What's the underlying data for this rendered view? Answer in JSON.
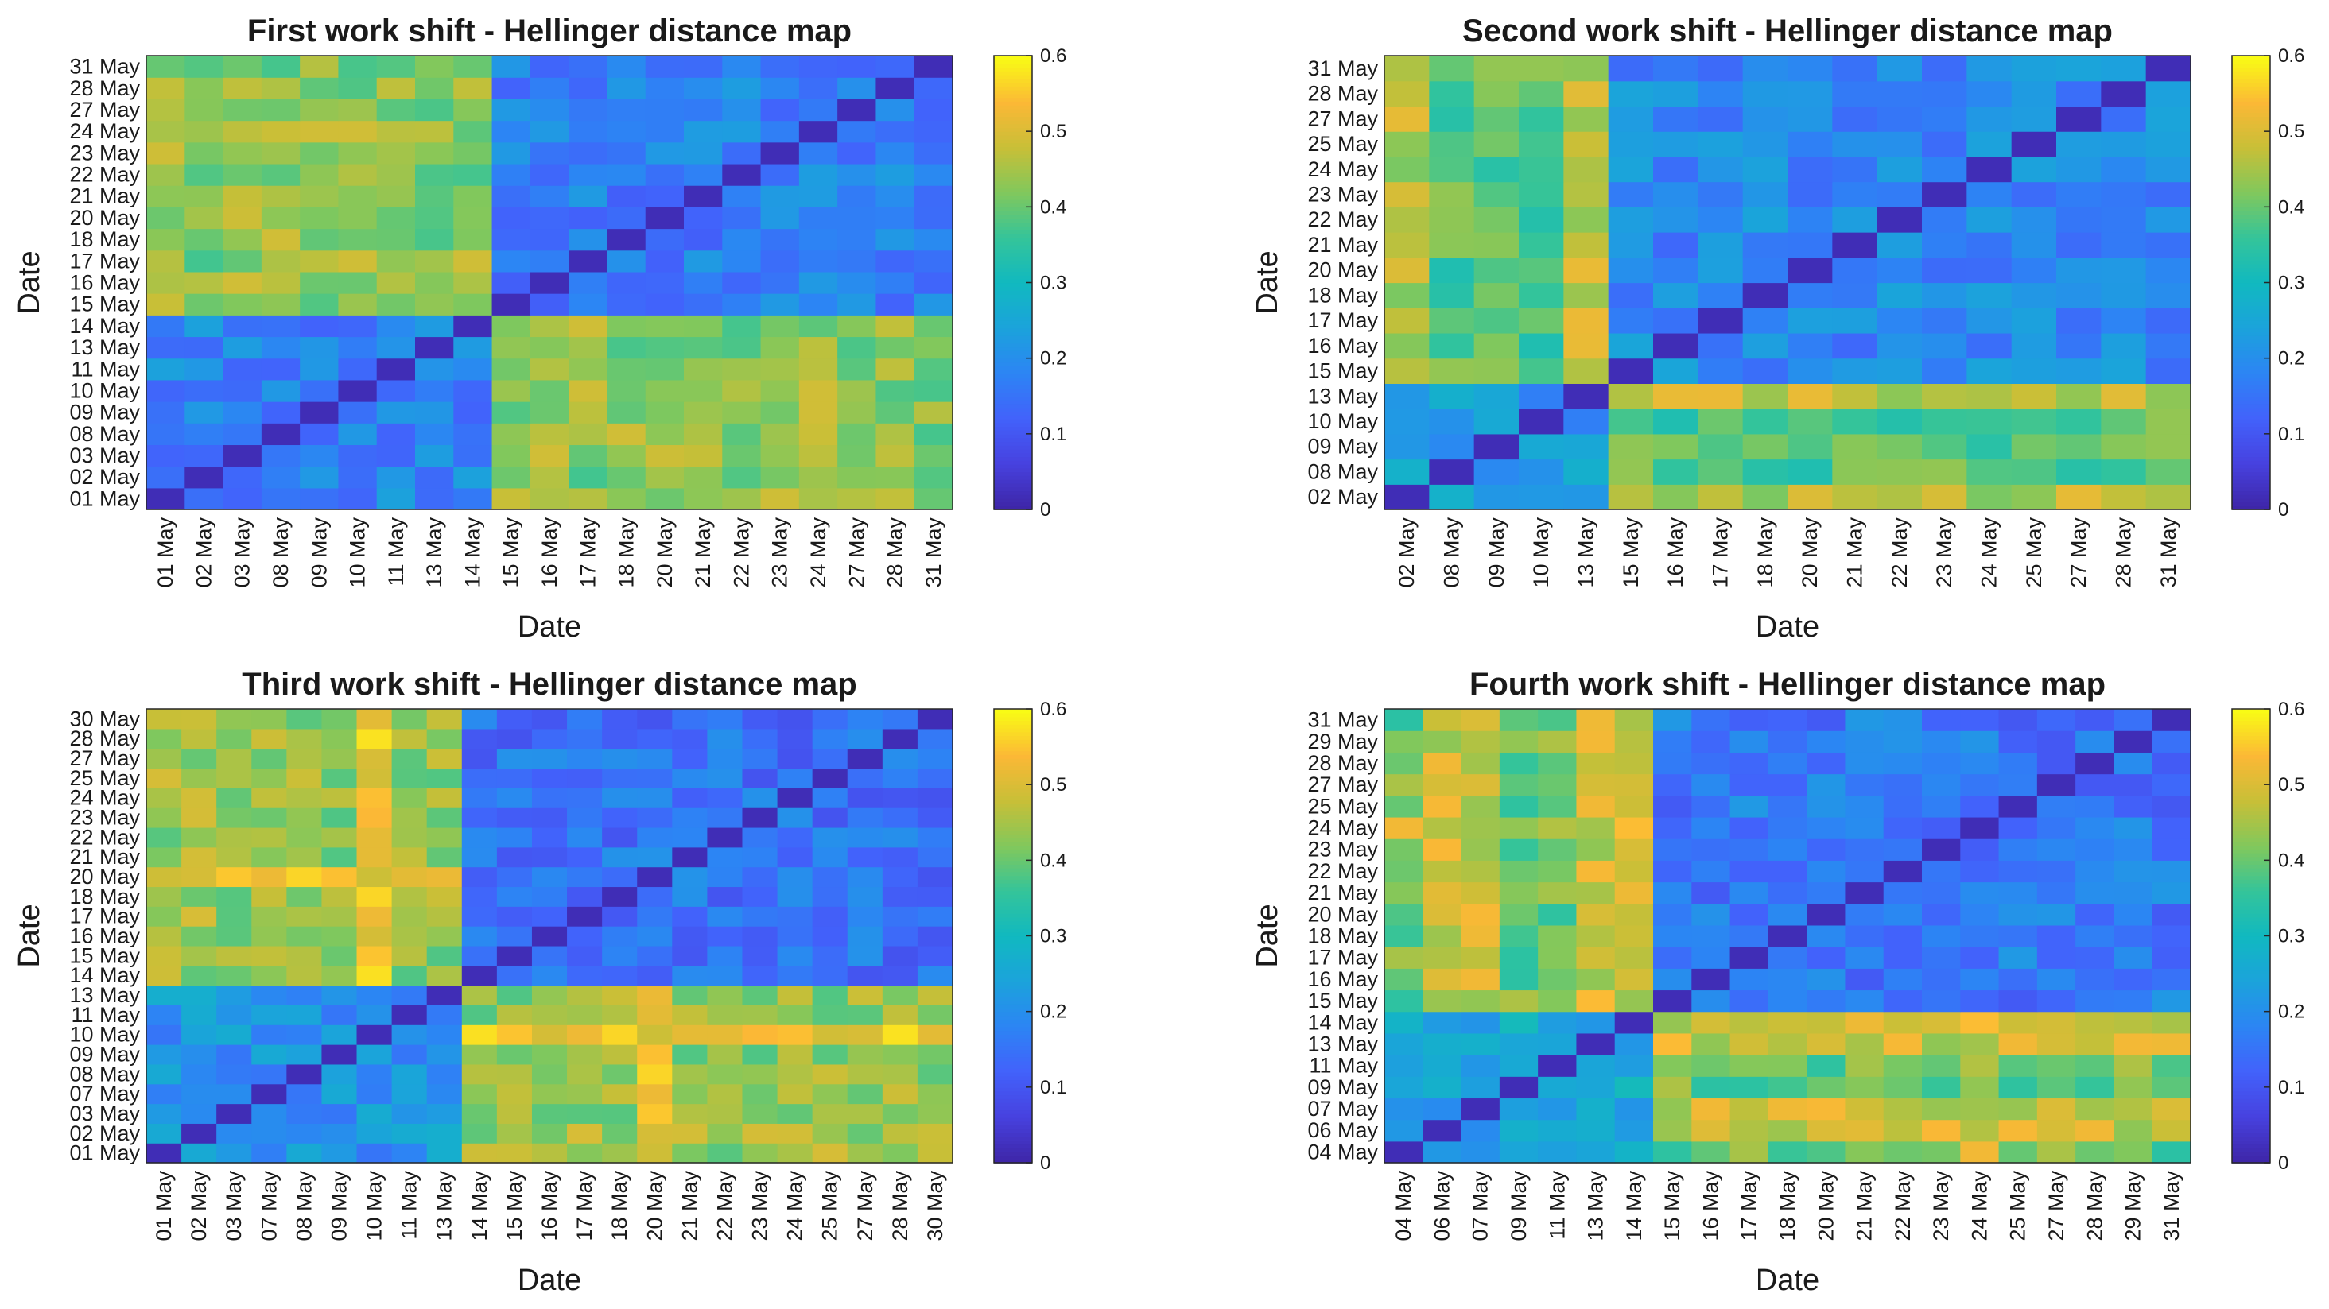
{
  "chart_data": [
    {
      "type": "heatmap",
      "title": "First work shift - Hellinger distance map",
      "xlabel": "Date",
      "ylabel": "Date",
      "categories": [
        "01 May",
        "02 May",
        "03 May",
        "08 May",
        "09 May",
        "10 May",
        "11 May",
        "13 May",
        "14 May",
        "15 May",
        "16 May",
        "17 May",
        "18 May",
        "20 May",
        "21 May",
        "22 May",
        "23 May",
        "24 May",
        "27 May",
        "28 May",
        "31 May"
      ],
      "colorbar": {
        "range": [
          0,
          0.6
        ],
        "ticks": [
          "0",
          "0.1",
          "0.2",
          "0.3",
          "0.4",
          "0.5",
          "0.6"
        ]
      },
      "blocks": {
        "split": 9,
        "within_early": 0.18,
        "within_late": 0.17,
        "cross": 0.43
      },
      "hot_rows": [],
      "hot_cols": []
    },
    {
      "type": "heatmap",
      "title": "Second work shift - Hellinger distance map",
      "xlabel": "Date",
      "ylabel": "Date",
      "categories": [
        "02 May",
        "08 May",
        "09 May",
        "10 May",
        "13 May",
        "15 May",
        "16 May",
        "17 May",
        "18 May",
        "20 May",
        "21 May",
        "22 May",
        "23 May",
        "24 May",
        "25 May",
        "27 May",
        "28 May",
        "31 May"
      ],
      "colorbar": {
        "range": [
          0,
          0.6
        ],
        "ticks": [
          "0",
          "0.1",
          "0.2",
          "0.3",
          "0.4",
          "0.5",
          "0.6"
        ]
      },
      "blocks": {
        "split": 5,
        "within_early": 0.22,
        "within_late": 0.19,
        "cross": 0.38
      },
      "hot_rows": [
        0
      ],
      "hot_cols": [
        0,
        4
      ]
    },
    {
      "type": "heatmap",
      "title": "Third work shift - Hellinger distance map",
      "xlabel": "Date",
      "ylabel": "Date",
      "categories": [
        "01 May",
        "02 May",
        "03 May",
        "07 May",
        "08 May",
        "09 May",
        "10 May",
        "11 May",
        "13 May",
        "14 May",
        "15 May",
        "16 May",
        "17 May",
        "18 May",
        "20 May",
        "21 May",
        "22 May",
        "23 May",
        "24 May",
        "25 May",
        "27 May",
        "28 May",
        "30 May"
      ],
      "colorbar": {
        "range": [
          0,
          0.6
        ],
        "ticks": [
          "0",
          "0.1",
          "0.2",
          "0.3",
          "0.4",
          "0.5",
          "0.6"
        ]
      },
      "blocks": {
        "split": 9,
        "within_early": 0.21,
        "within_late": 0.15,
        "cross": 0.44
      },
      "hot_rows": [
        14
      ],
      "hot_cols": [
        6,
        14
      ]
    },
    {
      "type": "heatmap",
      "title": "Fourth work shift - Hellinger distance map",
      "xlabel": "Date",
      "ylabel": "Date",
      "categories": [
        "04 May",
        "06 May",
        "07 May",
        "09 May",
        "11 May",
        "13 May",
        "14 May",
        "15 May",
        "16 May",
        "17 May",
        "18 May",
        "20 May",
        "21 May",
        "22 May",
        "23 May",
        "24 May",
        "25 May",
        "27 May",
        "28 May",
        "29 May",
        "31 May"
      ],
      "colorbar": {
        "range": [
          0,
          0.6
        ],
        "ticks": [
          "0",
          "0.1",
          "0.2",
          "0.3",
          "0.4",
          "0.5",
          "0.6"
        ]
      },
      "blocks": {
        "split": 7,
        "within_early": 0.25,
        "within_late": 0.16,
        "cross": 0.4
      },
      "hot_rows": [
        2,
        6
      ],
      "hot_cols": [
        1,
        2,
        5,
        15
      ]
    }
  ]
}
